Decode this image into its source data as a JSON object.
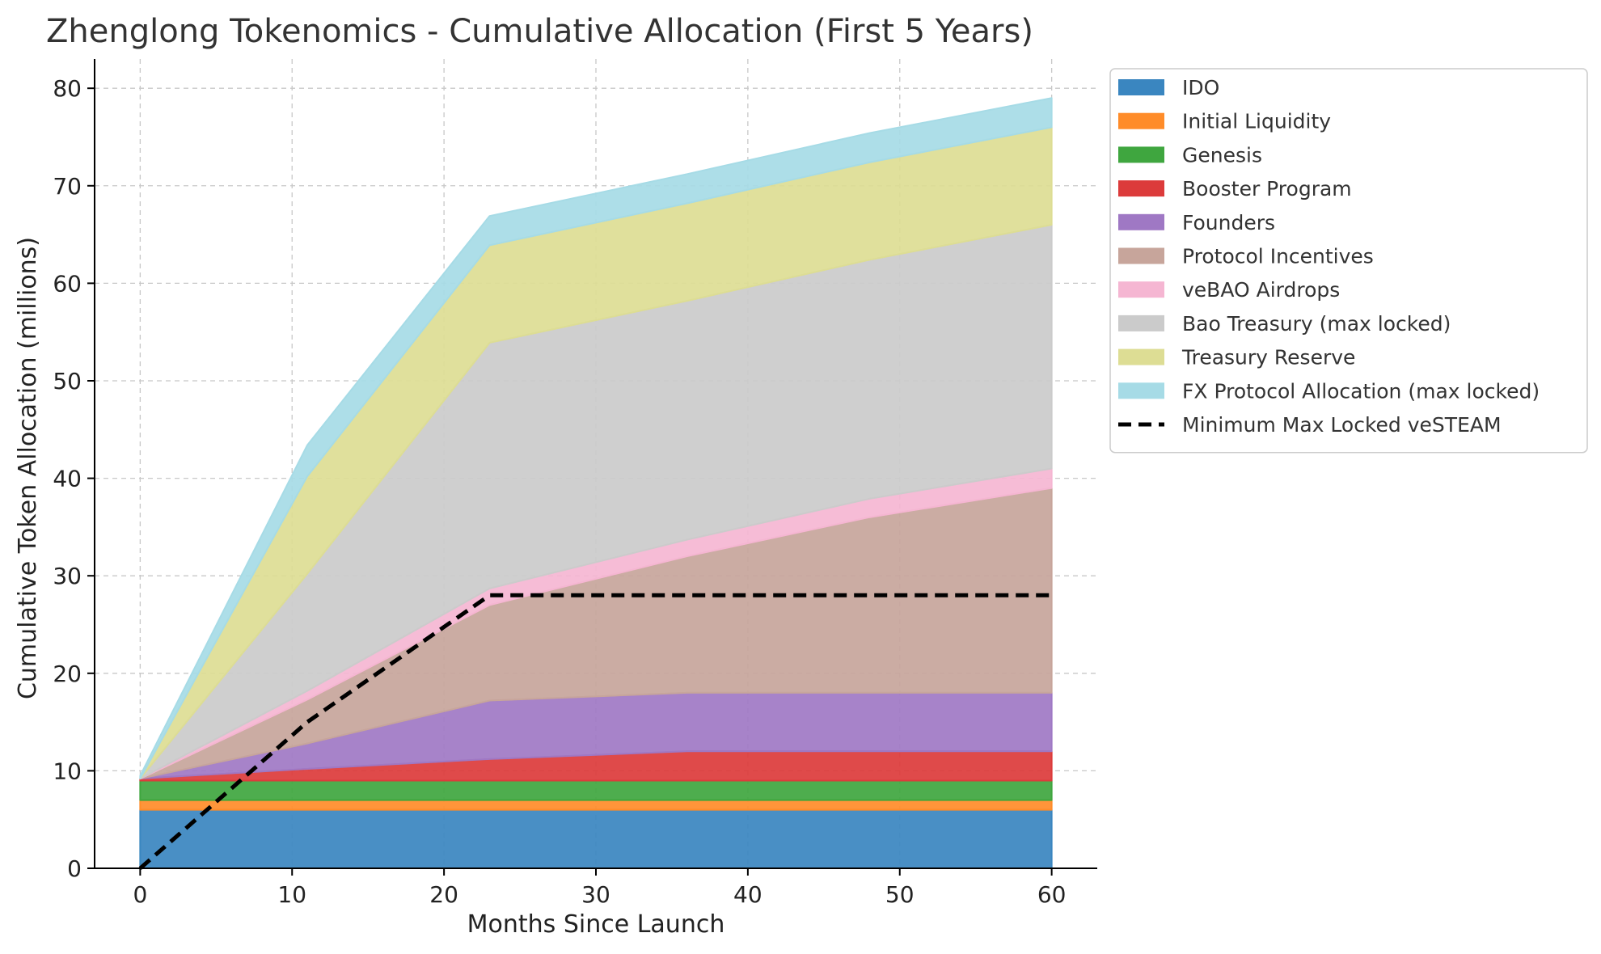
{
  "chart_data": {
    "type": "area",
    "stacked": true,
    "title": "Zhenglong Tokenomics - Cumulative Allocation (First 5 Years)",
    "xlabel": "Months Since Launch",
    "ylabel": "Cumulative Token Allocation (millions)",
    "xlim": [
      -3,
      63
    ],
    "ylim": [
      0,
      83
    ],
    "xticks": [
      0,
      10,
      20,
      30,
      40,
      50,
      60
    ],
    "yticks": [
      0,
      10,
      20,
      30,
      40,
      50,
      60,
      70,
      80
    ],
    "grid": true,
    "legend_position": "outside-right-top",
    "x": [
      0,
      11,
      23,
      36,
      48,
      60
    ],
    "series": [
      {
        "name": "IDO",
        "color": "#3a86c0",
        "values": [
          6,
          6,
          6,
          6,
          6,
          6
        ]
      },
      {
        "name": "Initial Liquidity",
        "color": "#ff8c29",
        "values": [
          1,
          1,
          1,
          1,
          1,
          1
        ]
      },
      {
        "name": "Genesis",
        "color": "#3fa63f",
        "values": [
          2,
          2,
          2,
          2,
          2,
          2
        ]
      },
      {
        "name": "Booster Program",
        "color": "#dc3b3b",
        "values": [
          0.2,
          1.2,
          2.2,
          3,
          3,
          3
        ]
      },
      {
        "name": "Founders",
        "color": "#9f78c4",
        "values": [
          0,
          2.6,
          6,
          6,
          6,
          6
        ]
      },
      {
        "name": "Protocol Incentives",
        "color": "#c7a59b",
        "values": [
          0,
          4.5,
          9.8,
          14,
          18,
          21
        ]
      },
      {
        "name": "veBAO Airdrops",
        "color": "#f5b6d2",
        "values": [
          0,
          0.9,
          1.7,
          1.7,
          1.9,
          2
        ]
      },
      {
        "name": "Bao Treasury (max locked)",
        "color": "#cbcbcb",
        "values": [
          0,
          12,
          25.2,
          24.5,
          24.5,
          25
        ]
      },
      {
        "name": "Treasury Reserve",
        "color": "#dddd94",
        "values": [
          0,
          10,
          10,
          10,
          10,
          10
        ]
      },
      {
        "name": "FX Protocol Allocation (max locked)",
        "color": "#a6dbe6",
        "values": [
          0.3,
          3.2,
          3,
          3,
          3,
          3
        ]
      }
    ],
    "line": {
      "name": "Minimum Max Locked veSTEAM",
      "color": "#000000",
      "style": "dashed",
      "x": [
        0,
        11,
        23,
        60
      ],
      "values": [
        0,
        15,
        28,
        28
      ]
    }
  }
}
